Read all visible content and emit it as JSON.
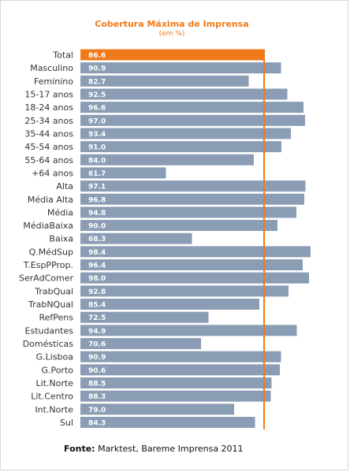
{
  "chart_data": {
    "type": "bar",
    "orientation": "horizontal",
    "title": "Cobertura Máxima de Imprensa",
    "subtitle": "(em %)",
    "categories": [
      "Total",
      "Masculino",
      "Feminino",
      "15-17 anos",
      "18-24 anos",
      "25-34 anos",
      "35-44 anos",
      "45-54 anos",
      "55-64 anos",
      "+64 anos",
      "Alta",
      "Média Alta",
      "Média",
      "MédiaBaixa",
      "Baixa",
      "Q.MédSup",
      "T.EspPProp.",
      "SerAdComer",
      "TrabQual",
      "TrabNQual",
      "RefPens",
      "Estudantes",
      "Domésticas",
      "G.Lisboa",
      "G.Porto",
      "Lit.Norte",
      "Lit.Centro",
      "Int.Norte",
      "Sul"
    ],
    "values": [
      86.6,
      90.9,
      82.7,
      92.5,
      96.6,
      97.0,
      93.4,
      91.0,
      84.0,
      61.7,
      97.1,
      96.8,
      94.8,
      90.0,
      68.3,
      98.4,
      96.4,
      98.0,
      92.8,
      85.4,
      72.5,
      94.9,
      70.6,
      90.9,
      90.6,
      88.5,
      88.3,
      79.0,
      84.3
    ],
    "value_labels": [
      "86.6",
      "90.9",
      "82.7",
      "92.5",
      "96.6",
      "97.0",
      "93.4",
      "91.0",
      "84.0",
      "61.7",
      "97.1",
      "96.8",
      "94.8",
      "90.0",
      "68.3",
      "98.4",
      "96.4",
      "98.0",
      "92.8",
      "85.4",
      "72.5",
      "94.9",
      "70.6",
      "90.9",
      "90.6",
      "88.5",
      "88.3",
      "79.0",
      "84.3"
    ],
    "highlight_index": 0,
    "reference_line_value": 86.6,
    "xlim": [
      40,
      100
    ],
    "grid": false,
    "legend": "none",
    "colors": {
      "highlight": "#f07a1a",
      "bar": "#8a9db4",
      "reference_line": "#f07a1a"
    }
  },
  "footer": {
    "source_label": "Fonte:",
    "source_text": " Marktest, Bareme Imprensa 2011"
  }
}
